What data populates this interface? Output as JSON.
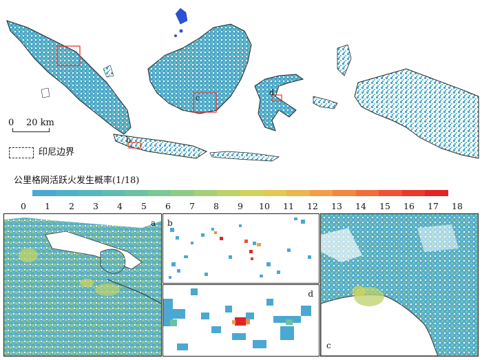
{
  "legend": {
    "scalebar_zero": "0",
    "scalebar_value": "20 km",
    "boundary_label": "印尼边界",
    "colorbar_title": "公里格网活跃火发生概率(1/18)",
    "ticks": [
      "0",
      "1",
      "2",
      "3",
      "4",
      "5",
      "6",
      "7",
      "8",
      "9",
      "10",
      "11",
      "12",
      "13",
      "14",
      "15",
      "16",
      "17",
      "18"
    ],
    "colors": [
      "#4aa8d2",
      "#4fb0c8",
      "#56b6bd",
      "#5fbcb0",
      "#6cc2a2",
      "#7cc795",
      "#8fcb86",
      "#a6cf78",
      "#bcd26a",
      "#d1d35d",
      "#e2c954",
      "#ebb64d",
      "#f0a046",
      "#f28840",
      "#f26d3a",
      "#ef5233",
      "#e9392c",
      "#e12426"
    ]
  },
  "insets_main": [
    {
      "label": "a"
    },
    {
      "label": "b"
    },
    {
      "label": "c"
    },
    {
      "label": "d"
    }
  ],
  "panels": {
    "a": "a",
    "b": "b",
    "c": "c",
    "d": "d"
  }
}
